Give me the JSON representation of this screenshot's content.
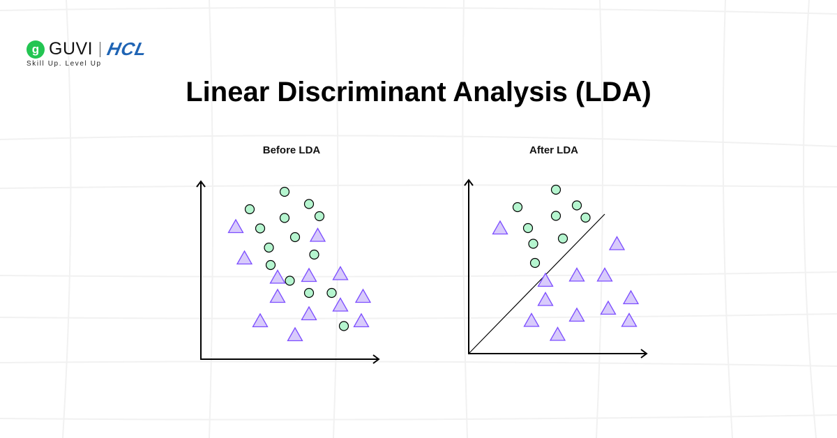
{
  "logo": {
    "brand": "GUVI",
    "partner": "HCL",
    "tagline": "Skill Up. Level Up",
    "badge_glyph": "g"
  },
  "title": "Linear Discriminant Analysis (LDA)",
  "colors": {
    "circle_fill": "#b5f5cf",
    "triangle_fill": "#d8cbfb",
    "triangle_stroke": "#7c4dff",
    "brand_green": "#23c552",
    "brand_blue": "#1f64b4"
  },
  "chart_data": [
    {
      "type": "scatter",
      "title": "Before LDA",
      "xlim": [
        0,
        100
      ],
      "ylim": [
        0,
        100
      ],
      "series": [
        {
          "name": "class-circle",
          "points": [
            [
              48,
              96
            ],
            [
              28,
              86
            ],
            [
              62,
              89
            ],
            [
              68,
              82
            ],
            [
              48,
              81
            ],
            [
              34,
              75
            ],
            [
              54,
              70
            ],
            [
              39,
              64
            ],
            [
              65,
              60
            ],
            [
              40,
              54
            ],
            [
              51,
              45
            ],
            [
              62,
              38
            ],
            [
              75,
              38
            ],
            [
              82,
              19
            ]
          ]
        },
        {
          "name": "class-triangle",
          "points": [
            [
              20,
              76
            ],
            [
              67,
              71
            ],
            [
              25,
              58
            ],
            [
              44,
              47
            ],
            [
              62,
              48
            ],
            [
              80,
              49
            ],
            [
              44,
              36
            ],
            [
              93,
              36
            ],
            [
              80,
              31
            ],
            [
              34,
              22
            ],
            [
              62,
              26
            ],
            [
              92,
              22
            ],
            [
              54,
              14
            ]
          ]
        }
      ]
    },
    {
      "type": "scatter",
      "title": "After LDA",
      "xlim": [
        0,
        100
      ],
      "ylim": [
        0,
        100
      ],
      "decision_line": [
        [
          0,
          0
        ],
        [
          78,
          80
        ]
      ],
      "series": [
        {
          "name": "class-circle",
          "points": [
            [
              50,
              94
            ],
            [
              28,
              84
            ],
            [
              62,
              85
            ],
            [
              50,
              79
            ],
            [
              67,
              78
            ],
            [
              34,
              72
            ],
            [
              54,
              66
            ],
            [
              37,
              63
            ],
            [
              38,
              52
            ]
          ]
        },
        {
          "name": "class-triangle",
          "points": [
            [
              18,
              72
            ],
            [
              85,
              63
            ],
            [
              44,
              42
            ],
            [
              62,
              45
            ],
            [
              78,
              45
            ],
            [
              44,
              31
            ],
            [
              93,
              32
            ],
            [
              80,
              26
            ],
            [
              36,
              19
            ],
            [
              62,
              22
            ],
            [
              92,
              19
            ],
            [
              51,
              11
            ]
          ]
        }
      ]
    }
  ]
}
